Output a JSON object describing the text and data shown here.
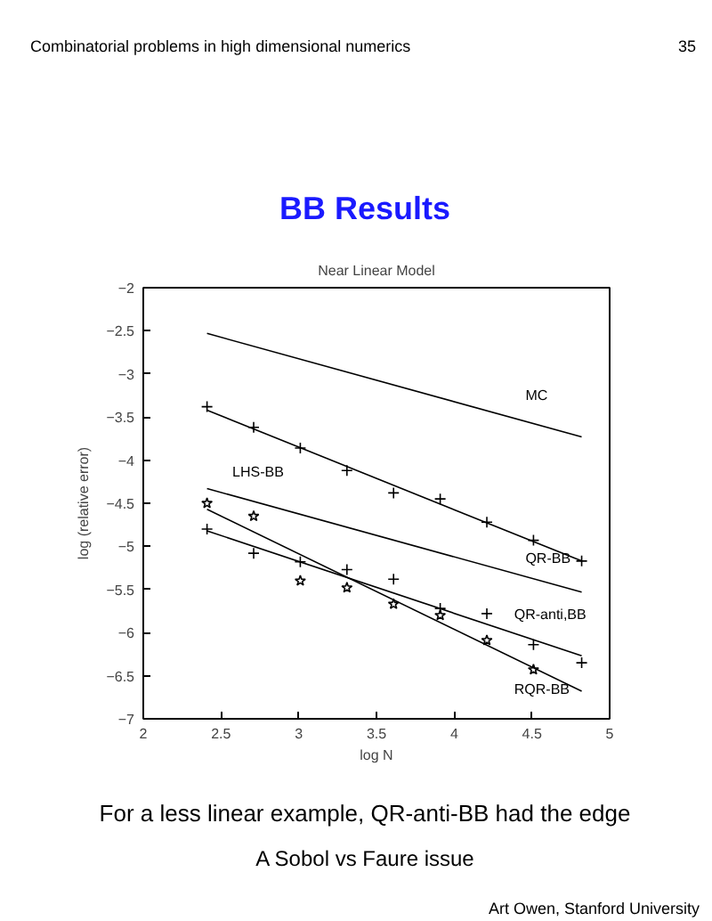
{
  "chart_data": {
    "type": "line",
    "title": "Near Linear Model",
    "xlabel": "log N",
    "ylabel": "log (relative error)",
    "xlim": [
      2,
      5
    ],
    "ylim": [
      -7,
      -2
    ],
    "xticks": [
      2,
      2.5,
      3,
      3.5,
      4,
      4.5,
      5
    ],
    "yticks": [
      -7,
      -6.5,
      -6,
      -5.5,
      -5,
      -4.5,
      -4,
      -3.5,
      -3,
      -2.5,
      -2
    ],
    "grid": false,
    "annotations": [
      "Combinatorial problems in high dimensional numerics",
      "35",
      "BB Results",
      "For a less linear example, QR-anti-BB had the edge",
      "A Sobol vs Faure issue",
      "Art Owen, Stanford University"
    ],
    "series": [
      {
        "name": "MC",
        "color": "#000000",
        "x": [
          2.41,
          4.82
        ],
        "values": [
          -2.53,
          -3.73
        ]
      },
      {
        "name": "QR-BB",
        "color": "#000000",
        "x": [
          2.41,
          4.82
        ],
        "values": [
          -3.42,
          -5.17
        ]
      },
      {
        "type": "scatter",
        "marker": "cross",
        "color": "#000000",
        "x": [
          2.41,
          2.71,
          3.01,
          3.31,
          3.61,
          3.91,
          4.21,
          4.51,
          4.82
        ],
        "values": [
          -3.38,
          -3.62,
          -3.86,
          -4.12,
          -4.38,
          -4.45,
          -4.72,
          -4.93,
          -5.17
        ]
      },
      {
        "name": "LHS-BB",
        "color": "#000000",
        "x": [
          2.41,
          4.82
        ],
        "values": [
          -4.33,
          -5.53
        ]
      },
      {
        "name": "QR-anti,BB",
        "color": "#000000",
        "x": [
          2.41,
          4.82
        ],
        "values": [
          -4.82,
          -6.27
        ]
      },
      {
        "type": "scatter",
        "marker": "cross",
        "color": "#000000",
        "x": [
          2.41,
          2.71,
          3.01,
          3.31,
          3.61,
          3.91,
          4.21,
          4.51,
          4.82
        ],
        "values": [
          -4.8,
          -5.08,
          -5.18,
          -5.27,
          -5.38,
          -5.72,
          -5.78,
          -6.14,
          -6.35
        ]
      },
      {
        "name": "RQR-BB",
        "color": "#000000",
        "x": [
          2.41,
          4.82
        ],
        "values": [
          -4.57,
          -6.68
        ]
      },
      {
        "type": "scatter",
        "marker": "star",
        "color": "#000000",
        "x": [
          2.41,
          2.71,
          3.01,
          3.31,
          3.61,
          3.91,
          4.21,
          4.51
        ],
        "values": [
          -4.5,
          -4.65,
          -5.4,
          -5.48,
          -5.67,
          -5.8,
          -6.09,
          -6.43
        ]
      }
    ]
  }
}
